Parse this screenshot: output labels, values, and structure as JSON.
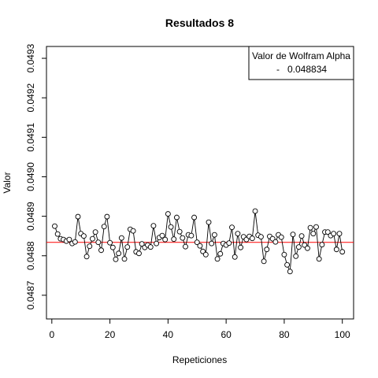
{
  "chart_data": {
    "type": "line",
    "title": "Resultados 8",
    "xlabel": "Repeticiones",
    "ylabel": "Valor",
    "xlim": [
      1,
      100
    ],
    "ylim": [
      0.04864,
      0.04933
    ],
    "x_ticks": [
      0,
      20,
      40,
      60,
      80,
      100
    ],
    "x_tick_labels": [
      "0",
      "20",
      "40",
      "60",
      "80",
      "100"
    ],
    "y_ticks": [
      0.0487,
      0.0488,
      0.0489,
      0.049,
      0.0491,
      0.0492,
      0.0493
    ],
    "y_tick_labels": [
      "0.0487",
      "0.0488",
      "0.0489",
      "0.0490",
      "0.0491",
      "0.0492",
      "0.0493"
    ],
    "grid": false,
    "series": [
      {
        "name": "",
        "style": "line+circle",
        "color": "#000000",
        "x": [
          1,
          2,
          3,
          4,
          5,
          6,
          7,
          8,
          9,
          10,
          11,
          12,
          13,
          14,
          15,
          16,
          17,
          18,
          19,
          20,
          21,
          22,
          23,
          24,
          25,
          26,
          27,
          28,
          29,
          30,
          31,
          32,
          33,
          34,
          35,
          36,
          37,
          38,
          39,
          40,
          41,
          42,
          43,
          44,
          45,
          46,
          47,
          48,
          49,
          50,
          51,
          52,
          53,
          54,
          55,
          56,
          57,
          58,
          59,
          60,
          61,
          62,
          63,
          64,
          65,
          66,
          67,
          68,
          69,
          70,
          71,
          72,
          73,
          74,
          75,
          76,
          77,
          78,
          79,
          80,
          81,
          82,
          83,
          84,
          85,
          86,
          87,
          88,
          89,
          90,
          91,
          92,
          93,
          94,
          95,
          96,
          97,
          98,
          99,
          100
        ],
        "values": [
          0.048875,
          0.048855,
          0.048843,
          0.048841,
          0.048837,
          0.048841,
          0.048831,
          0.048835,
          0.048899,
          0.048856,
          0.04885,
          0.048798,
          0.048824,
          0.048843,
          0.04886,
          0.048834,
          0.048814,
          0.048874,
          0.048899,
          0.048833,
          0.048821,
          0.048791,
          0.048806,
          0.048845,
          0.048792,
          0.048822,
          0.048867,
          0.048863,
          0.04881,
          0.048806,
          0.04883,
          0.048821,
          0.048827,
          0.048822,
          0.048876,
          0.048831,
          0.048846,
          0.048851,
          0.048841,
          0.048906,
          0.048873,
          0.048842,
          0.048897,
          0.048861,
          0.048845,
          0.048823,
          0.048853,
          0.048851,
          0.048897,
          0.048834,
          0.048825,
          0.048811,
          0.048803,
          0.048885,
          0.048831,
          0.048853,
          0.048792,
          0.048805,
          0.048831,
          0.048827,
          0.048832,
          0.048872,
          0.048797,
          0.048856,
          0.048821,
          0.048848,
          0.048841,
          0.048849,
          0.048844,
          0.048913,
          0.048852,
          0.048848,
          0.048786,
          0.048816,
          0.048849,
          0.048843,
          0.048835,
          0.048853,
          0.048847,
          0.048803,
          0.048777,
          0.04876,
          0.048854,
          0.048799,
          0.048822,
          0.04885,
          0.048827,
          0.048819,
          0.048871,
          0.048856,
          0.048873,
          0.048792,
          0.048828,
          0.04886,
          0.04886,
          0.048851,
          0.048856,
          0.048816,
          0.048856,
          0.04881
        ]
      }
    ],
    "reference_line": {
      "value": 0.048834,
      "color": "#ff0000"
    },
    "legend": {
      "title": "Valor de Wolfram Alpha",
      "entries": [
        {
          "label": "0.048834",
          "color": "#ff0000",
          "symbol": "-"
        }
      ],
      "position": "top-right"
    }
  }
}
